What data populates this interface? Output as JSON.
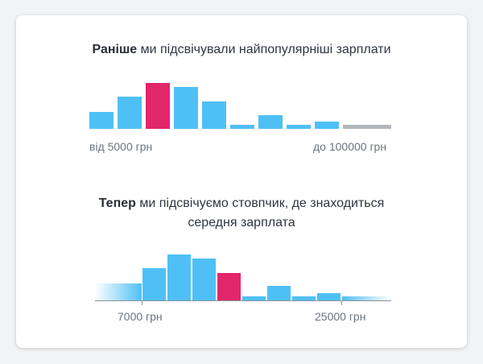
{
  "colors": {
    "bar": "#4fc0f5",
    "highlight": "#e2266a",
    "inactive": "#b3b6ba",
    "baseline": "#8c949c"
  },
  "before": {
    "title_bold": "Раніше",
    "title_rest": " ми підсвічували найпопулярніші зарплати",
    "label_min": "від 5000 грн",
    "label_max": "до 100000 грн",
    "bars": [
      {
        "value": 0.37,
        "state": "normal"
      },
      {
        "value": 0.7,
        "state": "normal"
      },
      {
        "value": 1.0,
        "state": "highlight"
      },
      {
        "value": 0.91,
        "state": "normal"
      },
      {
        "value": 0.6,
        "state": "normal"
      },
      {
        "value": 0.09,
        "state": "normal"
      },
      {
        "value": 0.3,
        "state": "normal"
      },
      {
        "value": 0.09,
        "state": "normal"
      },
      {
        "value": 0.16,
        "state": "normal"
      },
      {
        "value": 0.09,
        "state": "inactive"
      }
    ]
  },
  "now": {
    "title_bold": "Тепер",
    "title_rest": " ми підсвічуємо стовпчик, де знаходиться середня зарплата",
    "label_a": "7000 грн",
    "label_b": "25000 грн",
    "fade_left_value": 0.36,
    "fade_right_value": 0.09,
    "bars": [
      {
        "value": 0.7,
        "state": "normal"
      },
      {
        "value": 1.0,
        "state": "normal"
      },
      {
        "value": 0.91,
        "state": "normal"
      },
      {
        "value": 0.6,
        "state": "highlight"
      },
      {
        "value": 0.09,
        "state": "normal"
      },
      {
        "value": 0.32,
        "state": "normal"
      },
      {
        "value": 0.09,
        "state": "normal"
      },
      {
        "value": 0.16,
        "state": "normal"
      }
    ]
  }
}
